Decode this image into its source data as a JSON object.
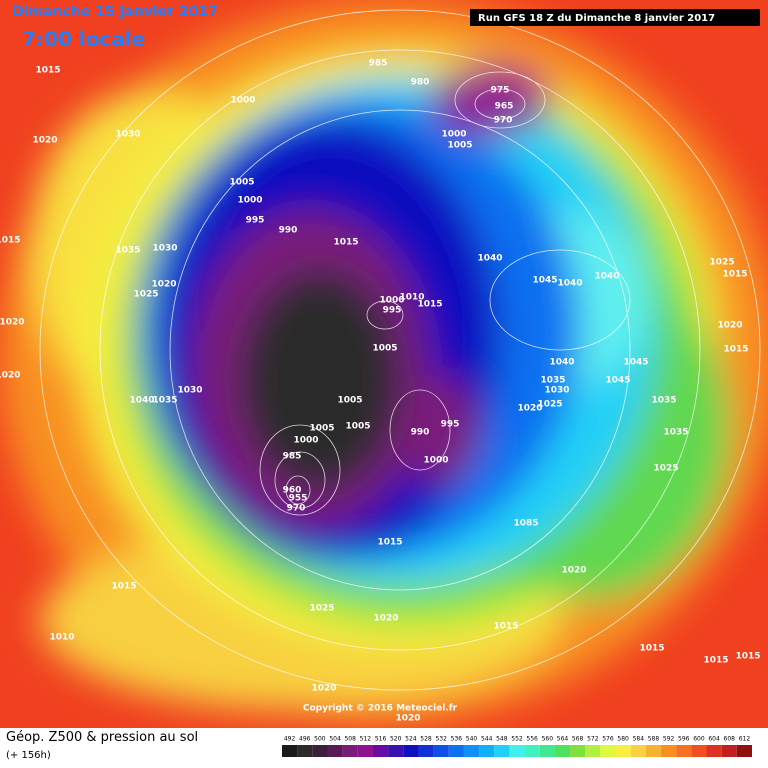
{
  "header": {
    "date": "Dimanche 15 janvier 2017",
    "time": "7:00 locale",
    "run": "Run GFS 18 Z du Dimanche 8 janvier 2017"
  },
  "map": {
    "pressure_labels": [
      "1015",
      "1000",
      "1030",
      "1020",
      "985",
      "980",
      "975",
      "965",
      "970",
      "1000",
      "1005",
      "1005",
      "1000",
      "995",
      "990",
      "1035",
      "1030",
      "1015",
      "1040",
      "1045",
      "1040",
      "1040",
      "1025",
      "1015",
      "1015",
      "1025",
      "1020",
      "1000",
      "995",
      "1010",
      "1015",
      "1005",
      "1020",
      "1020",
      "1015",
      "1020",
      "1040",
      "1045",
      "1035",
      "1030",
      "1045",
      "1025",
      "1020",
      "1030",
      "1040",
      "1035",
      "1005",
      "1005",
      "1005",
      "990",
      "995",
      "1000",
      "1035",
      "1035",
      "1025",
      "1000",
      "985",
      "960",
      "955",
      "970",
      "1085",
      "1015",
      "1020",
      "1015",
      "1025",
      "1020",
      "1015",
      "1010",
      "1015",
      "1015",
      "1015",
      "1020",
      "1020"
    ],
    "copyright": "Copyright © 2016 Meteociel.fr"
  },
  "footer": {
    "title": "Géop. Z500 & pression au sol",
    "lead": "(+ 156h)"
  },
  "colorbar": {
    "labels": [
      492,
      496,
      500,
      504,
      508,
      512,
      516,
      520,
      524,
      528,
      532,
      536,
      540,
      544,
      548,
      552,
      556,
      560,
      564,
      568,
      572,
      576,
      580,
      584,
      588,
      592,
      596,
      600,
      604,
      608,
      612
    ],
    "colors": [
      "#1a1a1a",
      "#2b2b2b",
      "#3d1f3d",
      "#5a1a5a",
      "#7a1a7a",
      "#901090",
      "#6a0aa0",
      "#3a10b0",
      "#1010c0",
      "#1030d8",
      "#1050e8",
      "#1070f0",
      "#1090f8",
      "#10b0f8",
      "#20d0f8",
      "#40f0f0",
      "#40f0c0",
      "#40e890",
      "#50e060",
      "#80e040",
      "#b0f040",
      "#e0f840",
      "#f8f040",
      "#f8d040",
      "#f8b030",
      "#f89020",
      "#f87020",
      "#f05020",
      "#e03020",
      "#c02020",
      "#901010"
    ]
  }
}
